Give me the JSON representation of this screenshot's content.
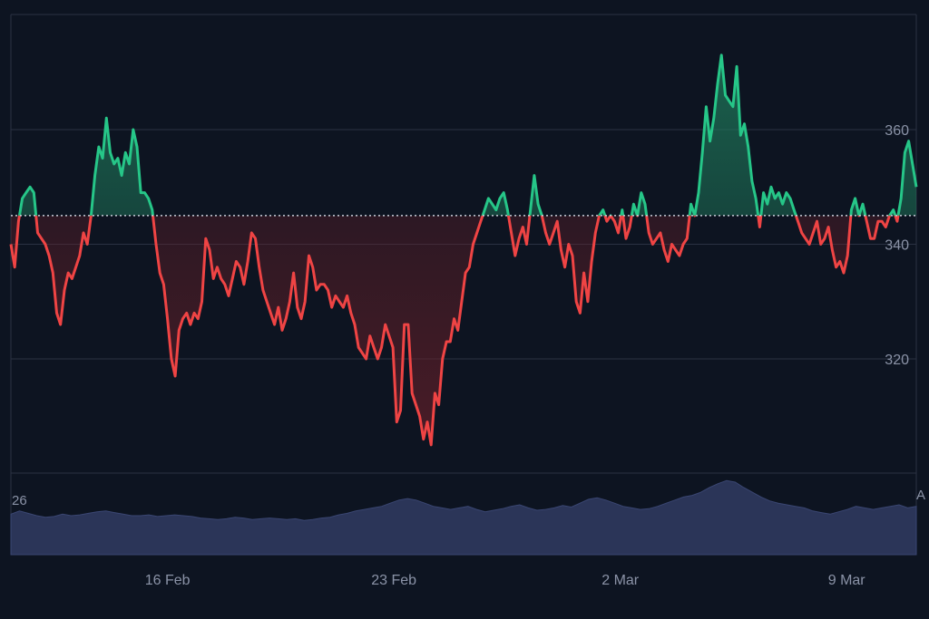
{
  "chart_data": {
    "type": "line",
    "baseline": 345,
    "ylim": [
      302,
      378
    ],
    "yticks": [
      320,
      340,
      360
    ],
    "ytick_labels": [
      "320",
      "340",
      "360"
    ],
    "xticks": [
      {
        "label": "16 Feb",
        "t": 0.163
      },
      {
        "label": "23 Feb",
        "t": 0.413
      },
      {
        "label": "2 Mar",
        "t": 0.663
      },
      {
        "label": "9 Mar",
        "t": 0.913
      }
    ],
    "x_start": "2024-02-12",
    "x_end": "2024-03-11",
    "series": [
      {
        "values": [
          340,
          336,
          344,
          348,
          349,
          350,
          349,
          342,
          341,
          340,
          338,
          335,
          328,
          326,
          332,
          335,
          334,
          336,
          338,
          342,
          340,
          345,
          352,
          357,
          355,
          362,
          356,
          354,
          355,
          352,
          356,
          354,
          360,
          357,
          349,
          349,
          348,
          346,
          340,
          335,
          333,
          327,
          320,
          317,
          325,
          327,
          328,
          326,
          328,
          327,
          330,
          341,
          339,
          334,
          336,
          334,
          333,
          331,
          334,
          337,
          336,
          333,
          337,
          342,
          341,
          336,
          332,
          330,
          328,
          326,
          329,
          325,
          327,
          330,
          335,
          329,
          327,
          330,
          338,
          336,
          332,
          333,
          333,
          332,
          329,
          331,
          330,
          329,
          331,
          328,
          326,
          322,
          321,
          320,
          324,
          322,
          320,
          322,
          326,
          324,
          322,
          309,
          311,
          326,
          326,
          314,
          312,
          310,
          306,
          309,
          305,
          314,
          312,
          320,
          323,
          323,
          327,
          325,
          330,
          335,
          336,
          340,
          342,
          344,
          346,
          348,
          347,
          346,
          348,
          349,
          346,
          342,
          338,
          341,
          343,
          340,
          346,
          352,
          347,
          345,
          342,
          340,
          342,
          344,
          339,
          336,
          340,
          338,
          330,
          328,
          335,
          330,
          337,
          342,
          345,
          346,
          344,
          345,
          344,
          342,
          346,
          341,
          343,
          347,
          345,
          349,
          347,
          342,
          340,
          341,
          342,
          339,
          337,
          340,
          339,
          338,
          340,
          341,
          347,
          345,
          349,
          356,
          364,
          358,
          362,
          368,
          373,
          366,
          365,
          364,
          371,
          359,
          361,
          357,
          351,
          348,
          343,
          349,
          347,
          350,
          348,
          349,
          347,
          349,
          348,
          346,
          344,
          342,
          341,
          340,
          342,
          344,
          340,
          341,
          343,
          339,
          336,
          337,
          335,
          338,
          346,
          348,
          345,
          347,
          344,
          341,
          341,
          344,
          344,
          343,
          345,
          346,
          344,
          348,
          356,
          358,
          354,
          350
        ]
      }
    ],
    "volume": {
      "label_left": "26",
      "label_right": "A",
      "values": [
        0.52,
        0.56,
        0.53,
        0.5,
        0.48,
        0.49,
        0.52,
        0.5,
        0.51,
        0.53,
        0.55,
        0.56,
        0.54,
        0.52,
        0.5,
        0.5,
        0.51,
        0.49,
        0.5,
        0.51,
        0.5,
        0.49,
        0.47,
        0.46,
        0.45,
        0.46,
        0.48,
        0.47,
        0.45,
        0.46,
        0.47,
        0.46,
        0.45,
        0.46,
        0.44,
        0.45,
        0.47,
        0.48,
        0.51,
        0.53,
        0.56,
        0.58,
        0.6,
        0.62,
        0.66,
        0.7,
        0.72,
        0.7,
        0.66,
        0.62,
        0.6,
        0.58,
        0.6,
        0.62,
        0.58,
        0.55,
        0.57,
        0.59,
        0.62,
        0.64,
        0.6,
        0.57,
        0.58,
        0.6,
        0.63,
        0.61,
        0.66,
        0.71,
        0.73,
        0.7,
        0.66,
        0.62,
        0.6,
        0.58,
        0.59,
        0.62,
        0.66,
        0.7,
        0.74,
        0.76,
        0.8,
        0.86,
        0.91,
        0.95,
        0.93,
        0.86,
        0.8,
        0.74,
        0.69,
        0.66,
        0.64,
        0.62,
        0.6,
        0.56,
        0.54,
        0.52,
        0.55,
        0.58,
        0.62,
        0.6,
        0.58,
        0.6,
        0.62,
        0.64,
        0.6,
        0.62
      ]
    }
  },
  "colors": {
    "background": "#0d1421",
    "above": "#26c688",
    "below": "#ef4444",
    "above_fill": "#1f6b52",
    "below_fill": "#5a1e26",
    "grid": "#2a3242",
    "baseline": "#c9ced9",
    "volume": "#2b3558",
    "volume_edge": "#3a4672"
  }
}
